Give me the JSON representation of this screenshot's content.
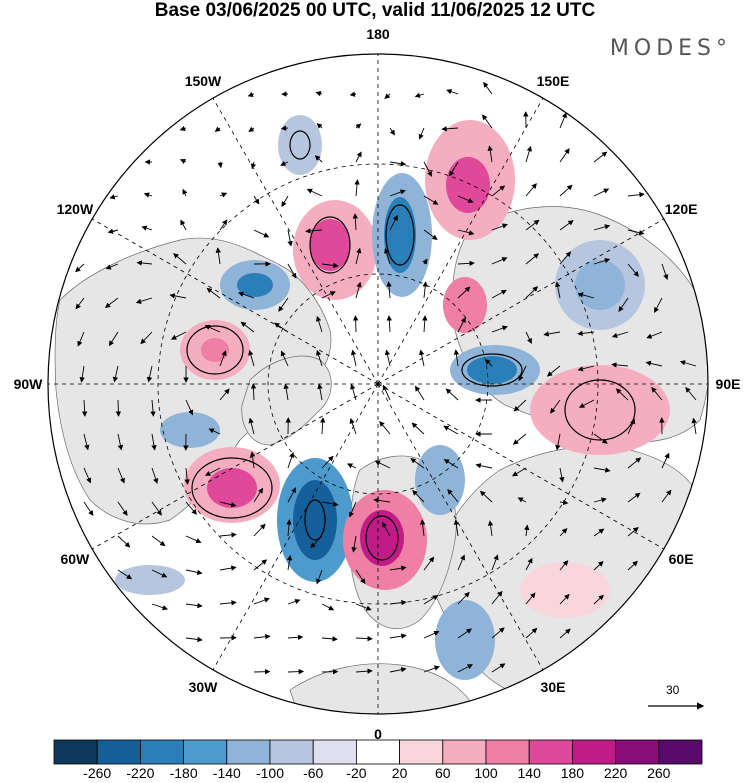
{
  "title": "Base 03/06/2025 00 UTC, valid 11/06/2025 12 UTC",
  "brand": "MODES°",
  "longitude_labels": [
    {
      "text": "180",
      "lon": 180
    },
    {
      "text": "150E",
      "lon": 150
    },
    {
      "text": "120E",
      "lon": 120
    },
    {
      "text": "90E",
      "lon": 90
    },
    {
      "text": "60E",
      "lon": 60
    },
    {
      "text": "30E",
      "lon": 30
    },
    {
      "text": "0",
      "lon": 0
    },
    {
      "text": "30W",
      "lon": -30
    },
    {
      "text": "60W",
      "lon": -60
    },
    {
      "text": "90W",
      "lon": -90
    },
    {
      "text": "120W",
      "lon": -120
    },
    {
      "text": "150W",
      "lon": -150
    }
  ],
  "reference_vector": {
    "label": "30"
  },
  "colorbar": {
    "labels": [
      "-260",
      "-220",
      "-180",
      "-140",
      "-100",
      "-60",
      "-20",
      "20",
      "60",
      "100",
      "140",
      "180",
      "220",
      "260"
    ],
    "colors": [
      "#0d3a5c",
      "#15609a",
      "#2b7fb8",
      "#4d9bcc",
      "#8fb4d8",
      "#b7c6df",
      "#dfdff0",
      "#ffffff",
      "#f9d6dc",
      "#f5aec0",
      "#ef7fa5",
      "#e0489a",
      "#c01b86",
      "#8a0e7a",
      "#5a0a6a"
    ]
  },
  "colors": {
    "land": "#e9e9e9",
    "ocean": "#ffffff",
    "grid": "#000000",
    "vectors": "#000000"
  }
}
